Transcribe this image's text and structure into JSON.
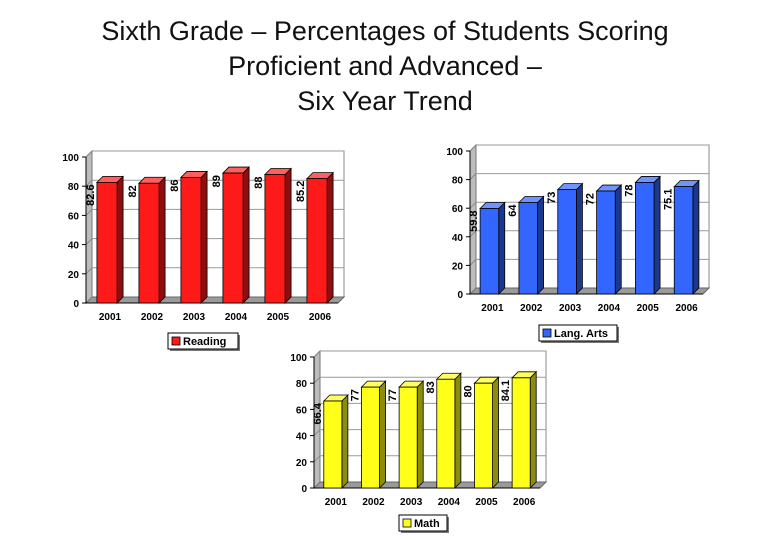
{
  "page": {
    "title_lines": [
      "Sixth Grade – Percentages of Students Scoring",
      "Proficient and Advanced –",
      "Six Year Trend"
    ]
  },
  "chart_data": [
    {
      "type": "bar",
      "categories": [
        "2001",
        "2002",
        "2003",
        "2004",
        "2005",
        "2006"
      ],
      "series": [
        {
          "name": "Reading",
          "values": [
            82.6,
            82,
            86,
            89,
            88,
            85.2
          ]
        }
      ],
      "value_labels": [
        "82.6",
        "82",
        "86",
        "89",
        "88",
        "85.2"
      ],
      "ylim": [
        0,
        100
      ],
      "yticks": [
        0,
        20,
        40,
        60,
        80,
        100
      ],
      "color": "#ff1a1a",
      "grid": true,
      "legend_position": "bottom"
    },
    {
      "type": "bar",
      "categories": [
        "2001",
        "2002",
        "2003",
        "2004",
        "2005",
        "2006"
      ],
      "series": [
        {
          "name": "Lang. Arts",
          "values": [
            59.8,
            64,
            73,
            72,
            78,
            75.1
          ]
        }
      ],
      "value_labels": [
        "59.8",
        "64",
        "73",
        "72",
        "78",
        "75.1"
      ],
      "ylim": [
        0,
        100
      ],
      "yticks": [
        0,
        20,
        40,
        60,
        80,
        100
      ],
      "color": "#3366ff",
      "grid": true,
      "legend_position": "bottom"
    },
    {
      "type": "bar",
      "categories": [
        "2001",
        "2002",
        "2003",
        "2004",
        "2005",
        "2006"
      ],
      "series": [
        {
          "name": "Math",
          "values": [
            66.4,
            77,
            77,
            83,
            80,
            84.1
          ]
        }
      ],
      "value_labels": [
        "66.4",
        "77",
        "77",
        "83",
        "80",
        "84.1"
      ],
      "ylim": [
        0,
        100
      ],
      "yticks": [
        0,
        20,
        40,
        60,
        80,
        100
      ],
      "color": "#ffff1a",
      "grid": true,
      "legend_position": "bottom"
    }
  ]
}
